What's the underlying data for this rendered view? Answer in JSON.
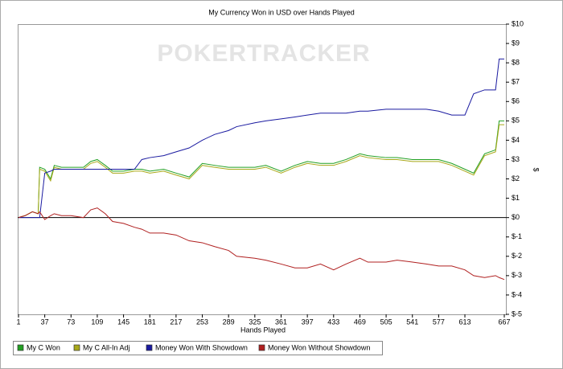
{
  "chart_data": {
    "type": "line",
    "title": "My Currency Won in USD over Hands Played",
    "watermark": "POKERTRACKER",
    "x_label": "Hands Played",
    "y_label": "$",
    "x": [
      1,
      10,
      20,
      28,
      30,
      37,
      45,
      50,
      60,
      73,
      90,
      100,
      109,
      120,
      130,
      145,
      160,
      170,
      181,
      200,
      217,
      235,
      253,
      270,
      289,
      300,
      325,
      340,
      361,
      380,
      397,
      415,
      433,
      450,
      469,
      480,
      505,
      520,
      541,
      560,
      577,
      595,
      613,
      625,
      640,
      655,
      660,
      667
    ],
    "xlim": [
      1,
      667
    ],
    "xticks": [
      1,
      37,
      73,
      109,
      145,
      181,
      217,
      253,
      289,
      325,
      361,
      397,
      433,
      469,
      505,
      541,
      577,
      613,
      667
    ],
    "ylim": [
      -5,
      10
    ],
    "yticks": [
      {
        "value": 10,
        "label": "$10"
      },
      {
        "value": 9,
        "label": "$9"
      },
      {
        "value": 8,
        "label": "$8"
      },
      {
        "value": 7,
        "label": "$7"
      },
      {
        "value": 6,
        "label": "$6"
      },
      {
        "value": 5,
        "label": "$5"
      },
      {
        "value": 4,
        "label": "$4"
      },
      {
        "value": 3,
        "label": "$3"
      },
      {
        "value": 2,
        "label": "$2"
      },
      {
        "value": 1,
        "label": "$1"
      },
      {
        "value": 0,
        "label": "$0"
      },
      {
        "value": -1,
        "label": "$-1"
      },
      {
        "value": -2,
        "label": "$-2"
      },
      {
        "value": -3,
        "label": "$-3"
      },
      {
        "value": -4,
        "label": "$-4"
      },
      {
        "value": -5,
        "label": "$-5"
      }
    ],
    "series": [
      {
        "name": "My C Won",
        "color": "#22a022",
        "values": [
          0,
          0.1,
          0.3,
          0.2,
          2.6,
          2.5,
          2.0,
          2.7,
          2.6,
          2.6,
          2.6,
          2.9,
          3.0,
          2.7,
          2.4,
          2.4,
          2.5,
          2.5,
          2.4,
          2.5,
          2.3,
          2.1,
          2.8,
          2.7,
          2.6,
          2.6,
          2.6,
          2.7,
          2.4,
          2.7,
          2.9,
          2.8,
          2.8,
          3.0,
          3.3,
          3.2,
          3.1,
          3.1,
          3.0,
          3.0,
          3.0,
          2.8,
          2.5,
          2.3,
          3.3,
          3.5,
          5.0,
          5.0
        ]
      },
      {
        "name": "My C All-In Adj",
        "color": "#a8a818",
        "values": [
          0,
          0.1,
          0.3,
          0.2,
          2.5,
          2.4,
          1.9,
          2.6,
          2.5,
          2.5,
          2.5,
          2.8,
          2.9,
          2.6,
          2.3,
          2.3,
          2.4,
          2.4,
          2.3,
          2.4,
          2.2,
          2.0,
          2.7,
          2.6,
          2.5,
          2.5,
          2.5,
          2.6,
          2.3,
          2.6,
          2.8,
          2.7,
          2.7,
          2.9,
          3.2,
          3.1,
          3.0,
          3.0,
          2.9,
          2.9,
          2.9,
          2.7,
          2.4,
          2.2,
          3.2,
          3.4,
          4.8,
          4.8
        ]
      },
      {
        "name": "Money Won With Showdown",
        "color": "#1a1aa0",
        "values": [
          0,
          0,
          0,
          0,
          0,
          2.3,
          2.4,
          2.5,
          2.5,
          2.5,
          2.5,
          2.5,
          2.5,
          2.5,
          2.5,
          2.5,
          2.5,
          3.0,
          3.1,
          3.2,
          3.4,
          3.6,
          4.0,
          4.3,
          4.5,
          4.7,
          4.9,
          5.0,
          5.1,
          5.2,
          5.3,
          5.4,
          5.4,
          5.4,
          5.5,
          5.5,
          5.6,
          5.6,
          5.6,
          5.6,
          5.5,
          5.3,
          5.3,
          6.4,
          6.6,
          6.6,
          8.2,
          8.2
        ]
      },
      {
        "name": "Money Won Without Showdown",
        "color": "#b02020",
        "values": [
          0,
          0.1,
          0.3,
          0.2,
          0.3,
          -0.1,
          0.1,
          0.2,
          0.1,
          0.1,
          0.0,
          0.4,
          0.5,
          0.2,
          -0.2,
          -0.3,
          -0.5,
          -0.6,
          -0.8,
          -0.8,
          -0.9,
          -1.2,
          -1.3,
          -1.5,
          -1.7,
          -2.0,
          -2.1,
          -2.2,
          -2.4,
          -2.6,
          -2.6,
          -2.4,
          -2.7,
          -2.4,
          -2.1,
          -2.3,
          -2.3,
          -2.2,
          -2.3,
          -2.4,
          -2.5,
          -2.5,
          -2.7,
          -3.0,
          -3.1,
          -3.0,
          -3.1,
          -3.2
        ]
      }
    ]
  }
}
